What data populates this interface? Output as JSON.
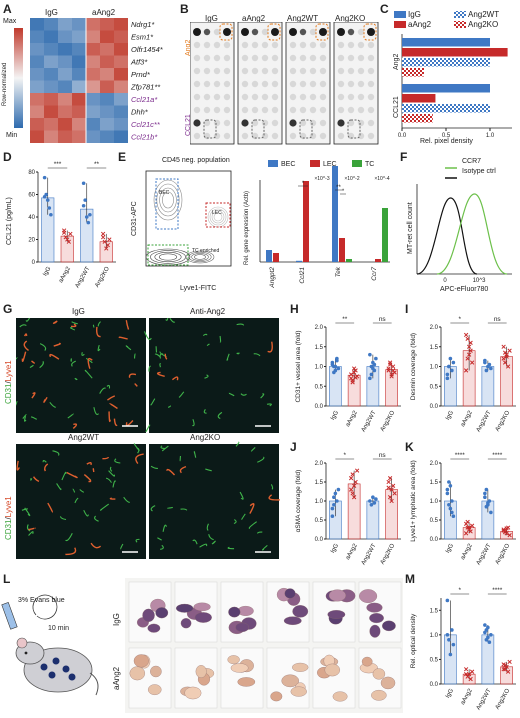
{
  "panels": {
    "A": "A",
    "B": "B",
    "C": "C",
    "D": "D",
    "E": "E",
    "F": "F",
    "G": "G",
    "H": "H",
    "I": "I",
    "J": "J",
    "K": "K",
    "L": "L",
    "M": "M"
  },
  "A": {
    "col_labels": [
      "IgG",
      "aAng2"
    ],
    "scale_max": "Max",
    "scale_min": "Min",
    "scale_title": "Row-normalized",
    "genes": [
      "Ndrg1*",
      "Esm1*",
      "Olfr1454*",
      "Atf3*",
      "Prnd*",
      "Zfp781**",
      "Ccl21a*",
      "Dhh*",
      "Ccl21c**",
      "Ccl21b*"
    ],
    "gene_colors": [
      "#222",
      "#222",
      "#222",
      "#222",
      "#222",
      "#222",
      "#7b2b8c",
      "#222",
      "#7b2b8c",
      "#7b2b8c"
    ],
    "heatmap": [
      [
        0.05,
        0.1,
        0.2,
        0.15,
        0.85,
        0.9,
        0.95
      ],
      [
        0.1,
        0.05,
        0.15,
        0.2,
        0.8,
        0.95,
        0.9
      ],
      [
        0.15,
        0.1,
        0.05,
        0.1,
        0.9,
        0.85,
        0.95
      ],
      [
        0.1,
        0.2,
        0.15,
        0.05,
        0.8,
        0.9,
        0.85
      ],
      [
        0.15,
        0.1,
        0.2,
        0.1,
        0.85,
        0.8,
        0.95
      ],
      [
        0.2,
        0.15,
        0.1,
        0.25,
        0.75,
        0.9,
        0.8
      ],
      [
        0.85,
        0.9,
        0.8,
        0.95,
        0.15,
        0.1,
        0.2
      ],
      [
        0.8,
        0.95,
        0.85,
        0.9,
        0.2,
        0.15,
        0.1
      ],
      [
        0.9,
        0.85,
        0.95,
        0.8,
        0.1,
        0.2,
        0.15
      ],
      [
        0.95,
        0.8,
        0.9,
        0.85,
        0.15,
        0.1,
        0.05
      ]
    ]
  },
  "B": {
    "col_labels": [
      "IgG",
      "aAng2",
      "Ang2WT",
      "Ang2KO"
    ],
    "row_top": "Ang2",
    "row_bottom": "CCL21"
  },
  "C": {
    "legend": [
      "IgG",
      "aAng2",
      "Ang2WT",
      "Ang2KO"
    ],
    "colors": {
      "IgG": "#3f78c4",
      "aAng2": "#c62a2a"
    },
    "groups": [
      "Ang2",
      "CCL21"
    ],
    "xlabel": "Rel. pixel density",
    "xticks": [
      "0.0",
      "0.5",
      "1.0"
    ]
  },
  "D": {
    "ylabel": "CCL21 (pg/mL)",
    "yticks": [
      "0",
      "20",
      "40",
      "60",
      "80"
    ],
    "categories": [
      "IgG",
      "aAng2",
      "Ang2WT",
      "Ang2KO"
    ],
    "sig": [
      "***",
      "**"
    ]
  },
  "E": {
    "flow_title": "CD45 neg. population",
    "flow_xlabel": "Lyve1-FITC",
    "flow_ylabel": "CD31-APC",
    "gates": [
      "BEC",
      "LEC",
      "TC enriched"
    ],
    "legend": [
      "BEC",
      "LEC",
      "TC"
    ],
    "ylabel": "Rel. gene expression (Actb)",
    "genes": [
      "Angpt2",
      "Ccl21",
      "Tek",
      "Ccr7"
    ],
    "scale_labels": [
      "×10^-3",
      "×10^-2",
      "×10^-4"
    ],
    "sig": [
      "*",
      "**",
      "**",
      "*",
      "**",
      "*"
    ]
  },
  "F": {
    "legend": [
      "CCR7",
      "Isotype ctrl"
    ],
    "xlabel": "APC-eFluor780",
    "ylabel": "MT-ret cell count",
    "xticks": [
      "0",
      "10^3"
    ]
  },
  "G": {
    "titles": [
      "IgG",
      "Anti-Ang2",
      "Ang2WT",
      "Ang2KO"
    ],
    "stain_a": "CD31",
    "stain_b": "Lyve1"
  },
  "H": {
    "ylabel": "CD31+ vessel area (fold)",
    "yticks": [
      "0.0",
      "0.5",
      "1.0",
      "1.5",
      "2.0"
    ],
    "sig": [
      "**",
      "ns"
    ]
  },
  "I": {
    "ylabel": "Desmin coverage (fold)",
    "yticks": [
      "0.0",
      "0.5",
      "1.0",
      "1.5",
      "2.0"
    ],
    "sig": [
      "*",
      "ns"
    ]
  },
  "J": {
    "ylabel": "αSMA coverage (fold)",
    "yticks": [
      "0.0",
      "0.5",
      "1.0",
      "1.5",
      "2.0"
    ],
    "sig": [
      "*",
      "ns"
    ]
  },
  "K": {
    "ylabel": "Lyve1+ lymphatic area (fold)",
    "yticks": [
      "0.0",
      "0.5",
      "1.0",
      "1.5",
      "2.0"
    ],
    "sig": [
      "****",
      "****"
    ]
  },
  "L": {
    "dose": "3% Evans blue",
    "time": "10 min",
    "rows": [
      "IgG",
      "aAng2"
    ]
  },
  "M": {
    "ylabel": "Rel. optical density",
    "yticks": [
      "0.0",
      "0.5",
      "1.0",
      "1.5"
    ],
    "sig": [
      "*",
      "****"
    ]
  },
  "xcats": [
    "IgG",
    "aAng2",
    "Ang2WT",
    "Ang2KO"
  ],
  "chart_data": [
    {
      "type": "bar",
      "panel": "C",
      "orientation": "horizontal",
      "categories": [
        "Ang2",
        "CCL21"
      ],
      "series": [
        {
          "name": "IgG",
          "values": [
            1.0,
            1.0
          ]
        },
        {
          "name": "aAng2",
          "values": [
            1.2,
            0.38
          ]
        },
        {
          "name": "Ang2WT",
          "values": [
            1.0,
            1.0
          ]
        },
        {
          "name": "Ang2KO",
          "values": [
            0.25,
            0.35
          ]
        }
      ],
      "xlabel": "Rel. pixel density",
      "xlim": [
        0,
        1.25
      ]
    },
    {
      "type": "bar",
      "panel": "D",
      "categories": [
        "IgG",
        "aAng2",
        "Ang2WT",
        "Ang2KO"
      ],
      "values": [
        57,
        23,
        47,
        18
      ],
      "points": [
        [
          75,
          60,
          55,
          48,
          42,
          58
        ],
        [
          28,
          22,
          20,
          18,
          25,
          26
        ],
        [
          70,
          55,
          40,
          35,
          42,
          50
        ],
        [
          25,
          18,
          12,
          15,
          20,
          22
        ]
      ],
      "ylabel": "CCL21 (pg/mL)",
      "ylim": [
        0,
        80
      ]
    },
    {
      "type": "bar",
      "panel": "H",
      "categories": [
        "IgG",
        "aAng2",
        "Ang2WT",
        "Ang2KO"
      ],
      "values": [
        1.0,
        0.78,
        1.0,
        0.92
      ],
      "points": [
        [
          1.1,
          1.0,
          0.9,
          1.2,
          0.95,
          1.05,
          0.85,
          1.0,
          1.15
        ],
        [
          0.7,
          0.6,
          0.85,
          0.9,
          0.75,
          0.8,
          0.65,
          0.95,
          0.72
        ],
        [
          1.3,
          0.8,
          1.1,
          0.9,
          1.2,
          0.7,
          1.0,
          0.95,
          1.05
        ],
        [
          0.9,
          1.05,
          0.8,
          1.0,
          0.85,
          0.95,
          1.1,
          0.75,
          0.9
        ]
      ],
      "ylabel": "CD31+ vessel area (fold)",
      "ylim": [
        0,
        2
      ]
    },
    {
      "type": "bar",
      "panel": "I",
      "categories": [
        "IgG",
        "aAng2",
        "Ang2WT",
        "Ang2KO"
      ],
      "values": [
        1.0,
        1.4,
        1.0,
        1.25
      ],
      "points": [
        [
          0.8,
          1.0,
          1.2,
          0.9,
          1.1,
          0.7,
          1.0
        ],
        [
          1.8,
          1.2,
          1.5,
          1.6,
          1.1,
          0.9,
          1.7,
          1.3,
          1.4
        ],
        [
          1.1,
          0.9,
          1.0,
          1.05,
          0.95,
          1.15
        ],
        [
          1.5,
          1.1,
          1.3,
          1.0,
          1.4,
          1.2,
          1.35,
          1.25
        ]
      ],
      "ylabel": "Desmin coverage (fold)",
      "ylim": [
        0,
        2
      ]
    },
    {
      "type": "bar",
      "panel": "J",
      "categories": [
        "IgG",
        "aAng2",
        "Ang2WT",
        "Ang2KO"
      ],
      "values": [
        1.0,
        1.45,
        1.0,
        1.3
      ],
      "points": [
        [
          0.6,
          0.9,
          1.2,
          1.0,
          1.3,
          0.8,
          1.1
        ],
        [
          1.6,
          1.2,
          1.4,
          1.5,
          1.8,
          1.3,
          1.7,
          1.1
        ],
        [
          1.0,
          0.9,
          1.1,
          0.95,
          1.05
        ],
        [
          1.5,
          1.1,
          1.3,
          1.4,
          1.2,
          1.35,
          1.6,
          1.0
        ]
      ],
      "ylabel": "αSMA coverage (fold)",
      "ylim": [
        0,
        2
      ]
    },
    {
      "type": "bar",
      "panel": "K",
      "categories": [
        "IgG",
        "aAng2",
        "Ang2WT",
        "Ang2KO"
      ],
      "values": [
        1.0,
        0.3,
        1.0,
        0.2
      ],
      "points": [
        [
          1.2,
          1.5,
          0.8,
          1.0,
          0.6,
          1.3,
          0.9,
          1.4,
          0.7
        ],
        [
          0.4,
          0.3,
          0.25,
          0.2,
          0.35,
          0.15,
          0.45,
          0.3
        ],
        [
          1.1,
          1.3,
          0.9,
          1.0,
          0.7,
          1.2,
          0.85,
          0.95
        ],
        [
          0.25,
          0.2,
          0.15,
          0.3,
          0.1,
          0.22,
          0.18,
          0.28
        ]
      ],
      "ylabel": "Lyve1+ lymphatic area (fold)",
      "ylim": [
        0,
        2
      ]
    },
    {
      "type": "bar",
      "panel": "M",
      "categories": [
        "IgG",
        "aAng2",
        "Ang2WT",
        "Ang2KO"
      ],
      "values": [
        1.0,
        0.2,
        1.0,
        0.35
      ],
      "points": [
        [
          1.7,
          0.9,
          0.6,
          1.1,
          0.8,
          1.0
        ],
        [
          0.3,
          0.15,
          0.2,
          0.1,
          0.25,
          0.2
        ],
        [
          1.2,
          1.1,
          0.95,
          0.85,
          1.0,
          1.05,
          0.9,
          1.15
        ],
        [
          0.4,
          0.3,
          0.35,
          0.25,
          0.45,
          0.3,
          0.38
        ]
      ],
      "ylabel": "Rel. optical density",
      "ylim": [
        0,
        1.75
      ]
    }
  ]
}
